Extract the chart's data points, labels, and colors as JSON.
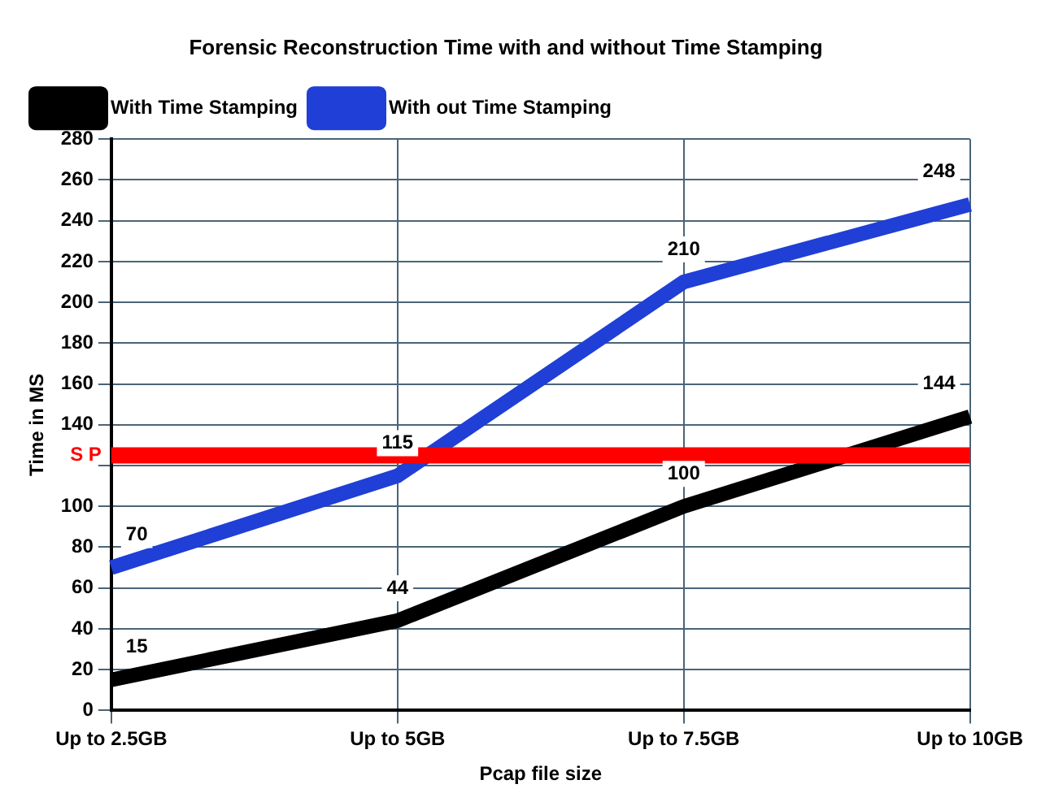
{
  "chart_data": {
    "type": "line",
    "title": "Forensic Reconstruction Time with and without Time Stamping",
    "xlabel": "Pcap file size",
    "ylabel": "Time in MS",
    "categories": [
      "Up to 2.5GB",
      "Up to 5GB",
      "Up to 7.5GB",
      "Up to 10GB"
    ],
    "series": [
      {
        "name": "With Time Stamping",
        "color": "#000000",
        "values": [
          15,
          44,
          100,
          144
        ]
      },
      {
        "name": "With out Time Stamping",
        "color": "#1f3fd6",
        "values": [
          70,
          115,
          210,
          248
        ]
      }
    ],
    "ylim": [
      0,
      280
    ],
    "yticks": [
      0,
      20,
      40,
      60,
      80,
      100,
      {
        "value": 120,
        "label": null
      },
      140,
      160,
      180,
      200,
      220,
      240,
      260,
      280
    ],
    "ref_lines": [
      {
        "axis": "y",
        "value": 125,
        "label": "S P",
        "color": "#ff0000"
      }
    ],
    "data_labels": true,
    "grid": true,
    "legend": "top left",
    "marker": "none",
    "line_style": "solid"
  }
}
